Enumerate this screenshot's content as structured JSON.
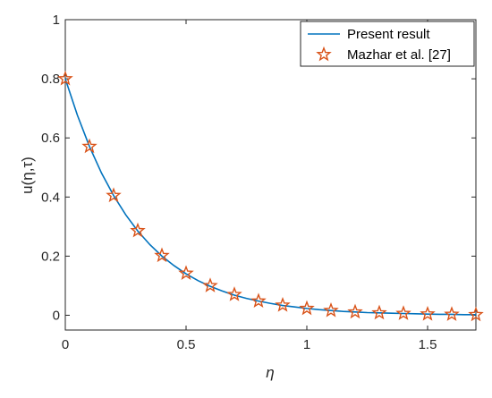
{
  "chart_data": {
    "type": "line",
    "xlabel": "η",
    "ylabel": "u(η,τ)",
    "xlim": [
      0,
      1.7
    ],
    "ylim": [
      -0.05,
      1
    ],
    "xticks": [
      0,
      0.5,
      1,
      1.5
    ],
    "xtick_labels": [
      "0",
      "0.5",
      "1",
      "1.5"
    ],
    "yticks": [
      0,
      0.2,
      0.4,
      0.6,
      0.8,
      1
    ],
    "ytick_labels": [
      "0",
      "0.2",
      "0.4",
      "0.6",
      "0.8",
      "1"
    ],
    "grid": false,
    "legend_position": "top-right",
    "series": [
      {
        "name": "Present result",
        "style": "line",
        "color": "#0072BD",
        "x": [
          0,
          0.05,
          0.1,
          0.15,
          0.2,
          0.25,
          0.3,
          0.35,
          0.4,
          0.45,
          0.5,
          0.55,
          0.6,
          0.65,
          0.7,
          0.75,
          0.8,
          0.85,
          0.9,
          0.95,
          1.0,
          1.05,
          1.1,
          1.15,
          1.2,
          1.25,
          1.3,
          1.35,
          1.4,
          1.45,
          1.5,
          1.55,
          1.6,
          1.65,
          1.7
        ],
        "y": [
          0.8,
          0.677,
          0.571,
          0.481,
          0.405,
          0.34,
          0.285,
          0.239,
          0.2,
          0.168,
          0.14,
          0.117,
          0.098,
          0.082,
          0.068,
          0.057,
          0.048,
          0.04,
          0.033,
          0.028,
          0.023,
          0.019,
          0.016,
          0.013,
          0.011,
          0.009,
          0.008,
          0.007,
          0.006,
          0.005,
          0.004,
          0.003,
          0.003,
          0.002,
          0.002
        ]
      },
      {
        "name": "Mazhar et al. [27]",
        "style": "markers",
        "marker": "pentagram",
        "color": "#D95319",
        "x": [
          0,
          0.1,
          0.2,
          0.3,
          0.4,
          0.5,
          0.6,
          0.7,
          0.8,
          0.9,
          1.0,
          1.1,
          1.2,
          1.3,
          1.4,
          1.5,
          1.6,
          1.7
        ],
        "y": [
          0.8,
          0.571,
          0.405,
          0.286,
          0.202,
          0.142,
          0.1,
          0.07,
          0.048,
          0.034,
          0.023,
          0.016,
          0.011,
          0.008,
          0.006,
          0.004,
          0.003,
          0.002
        ]
      }
    ]
  }
}
